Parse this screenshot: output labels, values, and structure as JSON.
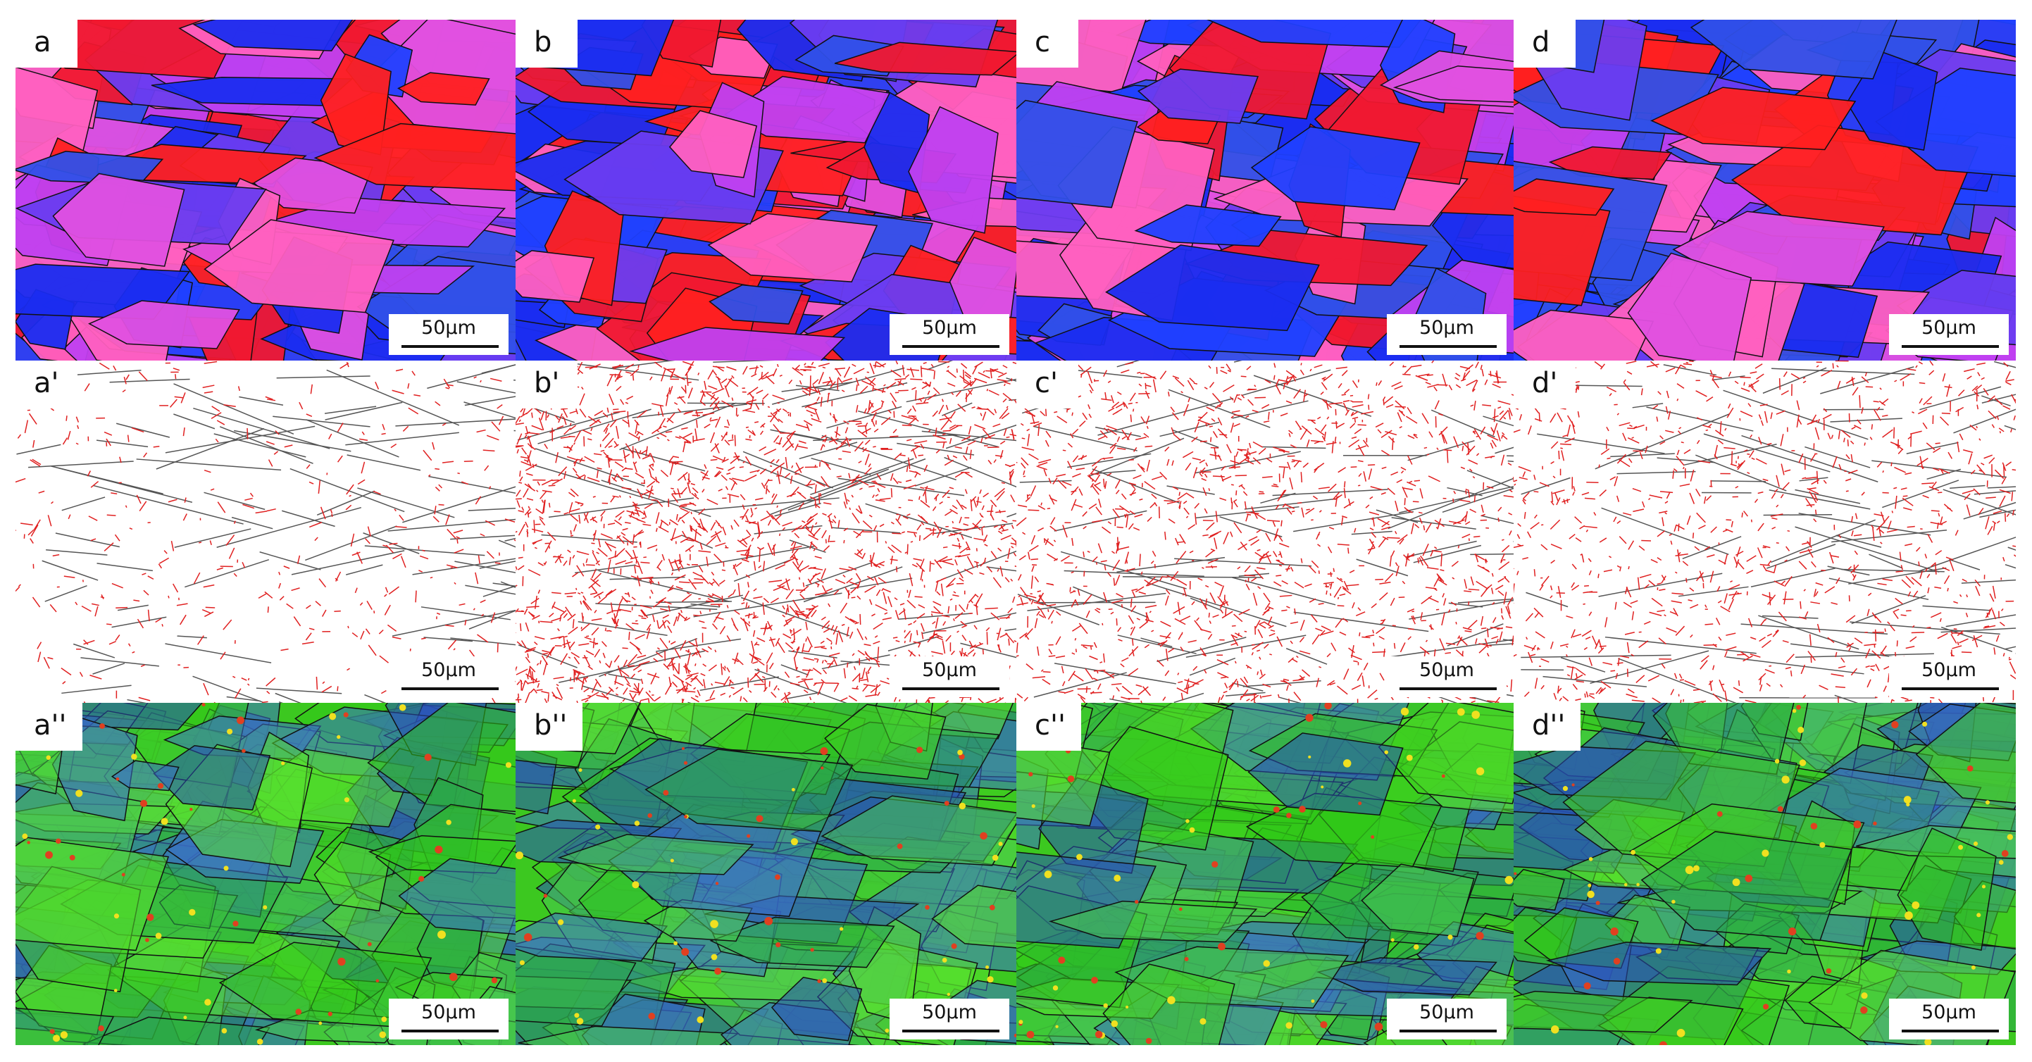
{
  "panels": [
    {
      "label": "a",
      "scale_bar": "50µm"
    },
    {
      "label": "b",
      "scale_bar": "50µm"
    },
    {
      "label": "c",
      "scale_bar": "50µm"
    },
    {
      "label": "d",
      "scale_bar": "50µm"
    },
    {
      "label": "a'",
      "scale_bar": "50µm"
    },
    {
      "label": "b'",
      "scale_bar": "50µm"
    },
    {
      "label": "c'",
      "scale_bar": "50µm"
    },
    {
      "label": "d'",
      "scale_bar": "50µm"
    },
    {
      "label": "a''",
      "scale_bar": "50µm"
    },
    {
      "label": "b''",
      "scale_bar": "50µm"
    },
    {
      "label": "c''",
      "scale_bar": "50µm"
    },
    {
      "label": "d''",
      "scale_bar": "50µm"
    }
  ]
}
